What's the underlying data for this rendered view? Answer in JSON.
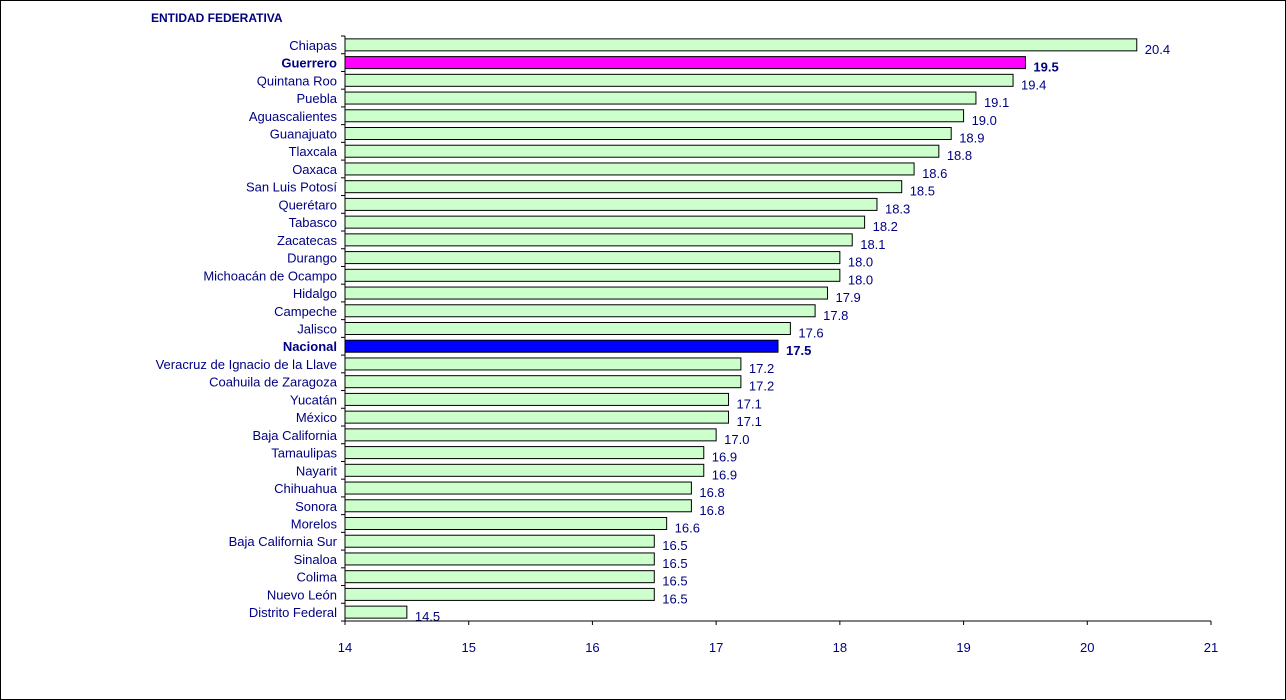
{
  "chart_data": {
    "type": "bar",
    "orientation": "horizontal",
    "ylabel": "ENTIDAD FEDERATIVA",
    "xlabel": "",
    "xlim": [
      14,
      21
    ],
    "xticks": [
      "14",
      "15",
      "16",
      "17",
      "18",
      "19",
      "20",
      "21"
    ],
    "categories": [
      "Chiapas",
      "Guerrero",
      "Quintana Roo",
      "Puebla",
      "Aguascalientes",
      "Guanajuato",
      "Tlaxcala",
      "Oaxaca",
      "San Luis Potosí",
      "Querétaro",
      "Tabasco",
      "Zacatecas",
      "Durango",
      "Michoacán de Ocampo",
      "Hidalgo",
      "Campeche",
      "Jalisco",
      "Nacional",
      "Veracruz de Ignacio de la Llave",
      "Coahuila de Zaragoza",
      "Yucatán",
      "México",
      "Baja California",
      "Tamaulipas",
      "Nayarit",
      "Chihuahua",
      "Sonora",
      "Morelos",
      "Baja California Sur",
      "Sinaloa",
      "Colima",
      "Nuevo León",
      "Distrito Federal"
    ],
    "values": [
      20.4,
      19.5,
      19.4,
      19.1,
      19.0,
      18.9,
      18.8,
      18.6,
      18.5,
      18.3,
      18.2,
      18.1,
      18.0,
      18.0,
      17.9,
      17.8,
      17.6,
      17.5,
      17.2,
      17.2,
      17.1,
      17.1,
      17.0,
      16.9,
      16.9,
      16.8,
      16.8,
      16.6,
      16.5,
      16.5,
      16.5,
      16.5,
      14.5
    ],
    "labels": [
      "20.4",
      "19.5",
      "19.4",
      "19.1",
      "19.0",
      "18.9",
      "18.8",
      "18.6",
      "18.5",
      "18.3",
      "18.2",
      "18.1",
      "18.0",
      "18.0",
      "17.9",
      "17.8",
      "17.6",
      "17.5",
      "17.2",
      "17.2",
      "17.1",
      "17.1",
      "17.0",
      "16.9",
      "16.9",
      "16.8",
      "16.8",
      "16.6",
      "16.5",
      "16.5",
      "16.5",
      "16.5",
      "14.5"
    ],
    "highlights": {
      "Guerrero": "#ff00ff",
      "Nacional": "#0000ff"
    },
    "bold_categories": [
      "Guerrero",
      "Nacional"
    ],
    "colors": {
      "bar_fill": "#ccffcc",
      "bar_stroke": "#000000",
      "text": "#000080"
    },
    "grid": false,
    "legend": "none"
  }
}
